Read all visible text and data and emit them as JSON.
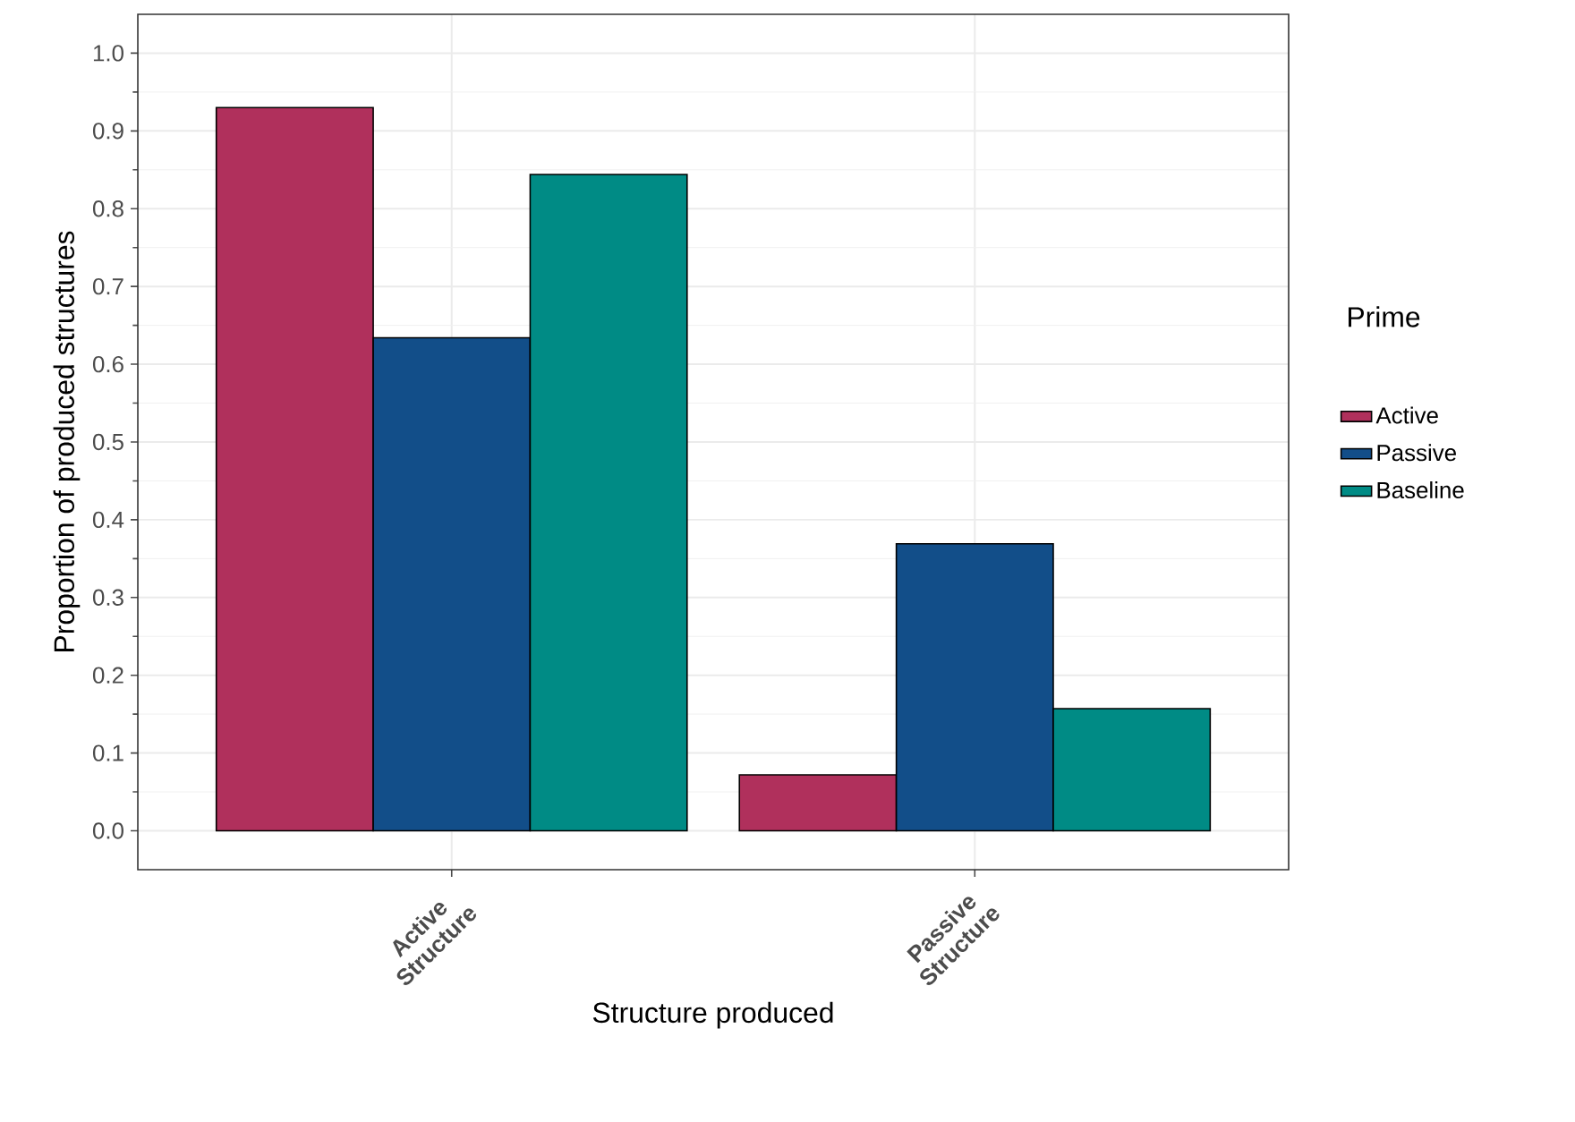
{
  "chart_data": {
    "type": "bar",
    "xlabel": "Structure produced",
    "ylabel": "Proportion of produced structures",
    "legend_title": "Prime",
    "categories": [
      "Active Structure",
      "Passive Structure"
    ],
    "series": [
      {
        "name": "Active",
        "color": "#b0305c",
        "values": [
          0.93,
          0.072
        ]
      },
      {
        "name": "Passive",
        "color": "#124e89",
        "values": [
          0.634,
          0.369
        ]
      },
      {
        "name": "Baseline",
        "color": "#008b85",
        "values": [
          0.844,
          0.157
        ]
      }
    ],
    "ylim": [
      -0.05,
      1.05
    ],
    "yticks": [
      {
        "value": 0,
        "label": "0.0"
      },
      0.1,
      0.2,
      0.3,
      0.4,
      0.5,
      0.6,
      0.7,
      0.8,
      0.9,
      {
        "value": 1,
        "label": "1.0"
      }
    ],
    "grid": true,
    "legend": "right"
  }
}
